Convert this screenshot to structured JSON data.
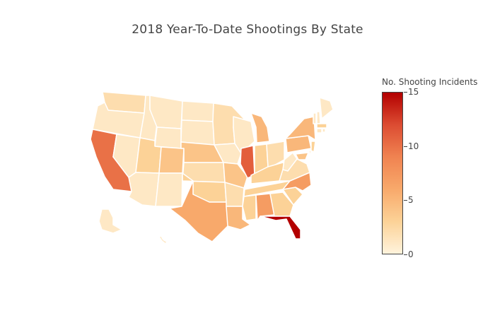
{
  "title": "2018 Year-To-Date Shootings By State",
  "colorbar": {
    "title": "No. Shooting Incidents",
    "ticks": [
      {
        "label": "15",
        "value": 15
      },
      {
        "label": "10",
        "value": 10
      },
      {
        "label": "5",
        "value": 5
      },
      {
        "label": "0",
        "value": 0
      }
    ],
    "min": 0,
    "max": 15,
    "colorscale": [
      "#fff3dc",
      "#fcd297",
      "#f8a96b",
      "#f08351",
      "#dc4c32",
      "#b30000"
    ]
  },
  "map_data": {
    "type": "choropleth",
    "scope": "usa",
    "values": {
      "WA": 2,
      "OR": 1,
      "CA": 10,
      "NV": 1,
      "ID": 1,
      "MT": 1,
      "WY": 1,
      "UT": 3,
      "AZ": 1,
      "CO": 4,
      "NM": 1,
      "ND": 1,
      "SD": 1,
      "NE": 4,
      "KS": 2,
      "OK": 3,
      "TX": 6,
      "MN": 2,
      "IA": 1,
      "MO": 4,
      "AR": 2,
      "LA": 5,
      "WI": 1,
      "IL": 11,
      "MI": 5,
      "IN": 3,
      "OH": 2,
      "KY": 3,
      "TN": 3,
      "MS": 3,
      "AL": 7,
      "GA": 3,
      "FL": 15,
      "SC": 3,
      "NC": 7,
      "VA": 2,
      "WV": 1,
      "PA": 5,
      "NY": 5,
      "ME": 1,
      "VT": 1,
      "NH": 1,
      "MA": 3,
      "CT": 1,
      "RI": 1,
      "NJ": 3,
      "DE": 1,
      "MD": 4,
      "AK": 1,
      "HI": 1
    }
  }
}
